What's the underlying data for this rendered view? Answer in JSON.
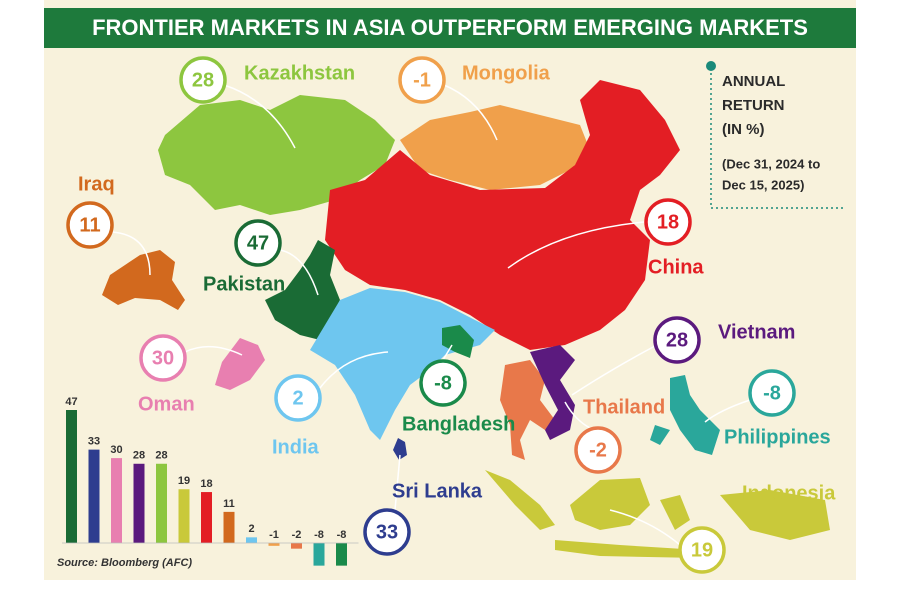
{
  "title": "FRONTIER MARKETS IN ASIA OUTPERFORM EMERGING MARKETS",
  "legend": {
    "heading": [
      "ANNUAL",
      "RETURN",
      "(IN %)"
    ],
    "period": [
      "(Dec 31, 2024 to",
      "Dec 15, 2025)"
    ]
  },
  "countries": [
    {
      "name": "Kazakhstan",
      "value": 28,
      "color": "#8dc63f"
    },
    {
      "name": "Mongolia",
      "value": -1,
      "color": "#f0a04b"
    },
    {
      "name": "China",
      "value": 18,
      "color": "#e31e24"
    },
    {
      "name": "Iraq",
      "value": 11,
      "color": "#d2691e"
    },
    {
      "name": "Pakistan",
      "value": 47,
      "color": "#1a6b35"
    },
    {
      "name": "Oman",
      "value": 30,
      "color": "#e87fb0"
    },
    {
      "name": "India",
      "value": 2,
      "color": "#6ec6ef"
    },
    {
      "name": "Bangladesh",
      "value": -8,
      "color": "#1a8a4a"
    },
    {
      "name": "Sri Lanka",
      "value": 33,
      "color": "#2e3d8f"
    },
    {
      "name": "Thailand",
      "value": -2,
      "color": "#e8784a"
    },
    {
      "name": "Vietnam",
      "value": 28,
      "color": "#5b1a7e"
    },
    {
      "name": "Philippines",
      "value": -8,
      "color": "#2aa79b"
    },
    {
      "name": "Indonesia",
      "value": 19,
      "color": "#c9c93a"
    }
  ],
  "chart_data": {
    "type": "bar",
    "values": [
      47,
      33,
      30,
      28,
      28,
      19,
      18,
      11,
      2,
      -1,
      -2,
      -8,
      -8
    ],
    "colors": [
      "#1a6b35",
      "#2e3d8f",
      "#e87fb0",
      "#5b1a7e",
      "#8dc63f",
      "#c9c93a",
      "#e31e24",
      "#d2691e",
      "#6ec6ef",
      "#f0a04b",
      "#e8784a",
      "#2aa79b",
      "#1a8a4a"
    ]
  },
  "source": "Source: Bloomberg (AFC)"
}
